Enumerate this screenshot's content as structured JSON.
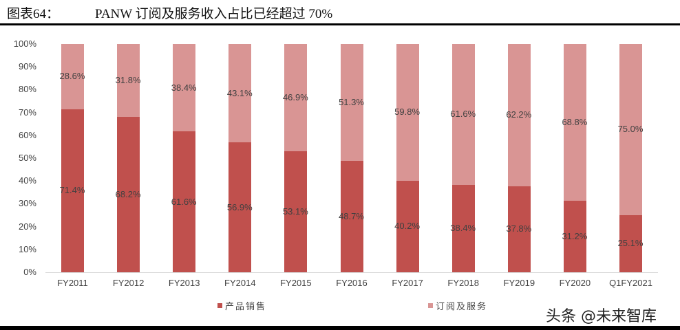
{
  "header": {
    "figure_label": "图表64：",
    "figure_title": "PANW 订阅及服务收入占比已经超过 70%"
  },
  "watermark": "头条 @未来智库",
  "colors": {
    "product_sales": "#c0504d",
    "subscription_services": "#d99594",
    "axis_line": "#d9d9d9",
    "text": "#404040"
  },
  "chart_data": {
    "type": "bar",
    "stacked": true,
    "percent_stacked": true,
    "title": "PANW 订阅及服务收入占比已经超过 70%",
    "xlabel": "",
    "ylabel": "",
    "ylim": [
      0,
      100
    ],
    "yticks": [
      "0%",
      "10%",
      "20%",
      "30%",
      "40%",
      "50%",
      "60%",
      "70%",
      "80%",
      "90%",
      "100%"
    ],
    "grid": false,
    "legend_position": "bottom",
    "categories": [
      "FY2011",
      "FY2012",
      "FY2013",
      "FY2014",
      "FY2015",
      "FY2016",
      "FY2017",
      "FY2018",
      "FY2019",
      "FY2020",
      "Q1FY2021"
    ],
    "series": [
      {
        "name": "产品销售",
        "color": "#c0504d",
        "values": [
          71.4,
          68.2,
          61.6,
          56.9,
          53.1,
          48.7,
          40.2,
          38.4,
          37.8,
          31.2,
          25.1
        ],
        "labels": [
          "71.4%",
          "68.2%",
          "61.6%",
          "56.9%",
          "53.1%",
          "48.7%",
          "40.2%",
          "38.4%",
          "37.8%",
          "31.2%",
          "25.1%"
        ]
      },
      {
        "name": "订阅及服务",
        "color": "#d99594",
        "values": [
          28.6,
          31.8,
          38.4,
          43.1,
          46.9,
          51.3,
          59.8,
          61.6,
          62.2,
          68.8,
          75.0
        ],
        "labels": [
          "28.6%",
          "31.8%",
          "38.4%",
          "43.1%",
          "46.9%",
          "51.3%",
          "59.8%",
          "61.6%",
          "62.2%",
          "68.8%",
          "75.0%"
        ]
      }
    ]
  }
}
